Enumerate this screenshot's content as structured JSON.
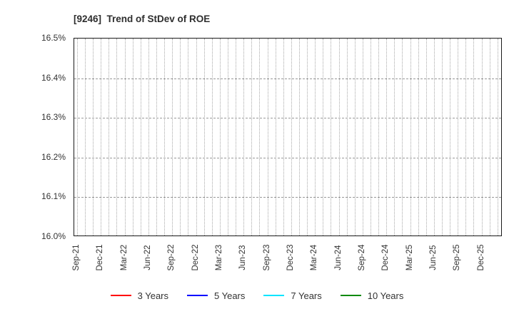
{
  "title": "[9246]  Trend of StDev of ROE",
  "chart_data": {
    "type": "line",
    "title": "[9246]  Trend of StDev of ROE",
    "xlabel": "",
    "ylabel": "",
    "ylim": [
      16.0,
      16.5
    ],
    "y_ticks": [
      {
        "value": 16.0,
        "label": "16.0%"
      },
      {
        "value": 16.1,
        "label": "16.1%"
      },
      {
        "value": 16.2,
        "label": "16.2%"
      },
      {
        "value": 16.3,
        "label": "16.3%"
      },
      {
        "value": 16.4,
        "label": "16.4%"
      },
      {
        "value": 16.5,
        "label": "16.5%"
      }
    ],
    "x_tick_labels": [
      "Sep-21",
      "Dec-21",
      "Mar-22",
      "Jun-22",
      "Sep-22",
      "Dec-22",
      "Mar-23",
      "Jun-23",
      "Sep-23",
      "Dec-23",
      "Mar-24",
      "Jun-24",
      "Sep-24",
      "Dec-24",
      "Mar-25",
      "Jun-25",
      "Sep-25",
      "Dec-25"
    ],
    "months_per_tick": 3,
    "total_months": 54,
    "grid": {
      "vertical": "dotted, monthly",
      "horizontal": "dashed, at inner y ticks"
    },
    "legend_position": "bottom-center",
    "series": [
      {
        "name": "3 Years",
        "color": "#ff0000",
        "values": []
      },
      {
        "name": "5 Years",
        "color": "#0000ff",
        "values": []
      },
      {
        "name": "7 Years",
        "color": "#00e5ff",
        "values": []
      },
      {
        "name": "10 Years",
        "color": "#0b8a0b",
        "values": []
      }
    ]
  }
}
